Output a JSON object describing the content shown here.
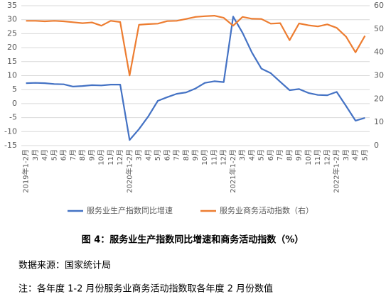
{
  "chart_data": {
    "type": "line",
    "title": "图 4：服务业生产指数同比增速和商务活动指数（%）",
    "source": "数据来源：国家统计局",
    "note": "注：各年度 1-2 月份服务业商务活动指数取各年度 2 月份数值",
    "categories": [
      "2019年1-2月",
      "3月",
      "4月",
      "5月",
      "6月",
      "7月",
      "8月",
      "9月",
      "10月",
      "11月",
      "12月",
      "2020年1-2月",
      "3月",
      "4月",
      "5月",
      "6月",
      "7月",
      "8月",
      "9月",
      "10月",
      "11月",
      "12月",
      "2021年1-2月",
      "3月",
      "4月",
      "5月",
      "6月",
      "7月",
      "8月",
      "9月",
      "10月",
      "11月",
      "12月",
      "2022年1-2月",
      "3月",
      "4月",
      "5月"
    ],
    "series": [
      {
        "name": "服务业生产指数同比增速",
        "color": "#4472c4",
        "values": [
          7.3,
          7.4,
          7.3,
          7.0,
          6.9,
          6.1,
          6.3,
          6.6,
          6.5,
          6.8,
          6.8,
          -13.0,
          -9.1,
          -4.5,
          1.0,
          2.3,
          3.5,
          4.0,
          5.4,
          7.4,
          8.0,
          7.7,
          31.1,
          25.3,
          18.2,
          12.5,
          10.9,
          7.8,
          4.8,
          5.2,
          3.8,
          3.1,
          3.0,
          4.2,
          -0.9,
          -6.1,
          -5.1
        ]
      },
      {
        "name": "服务业商务活动指数（右）",
        "color": "#ed7d31",
        "axis": "y2",
        "values": [
          53.5,
          53.5,
          53.3,
          53.5,
          53.3,
          52.9,
          52.5,
          52.8,
          51.4,
          53.5,
          53.0,
          30.1,
          51.8,
          52.1,
          52.3,
          53.4,
          53.5,
          54.3,
          55.2,
          55.5,
          55.7,
          54.8,
          51.4,
          55.2,
          54.4,
          54.3,
          52.3,
          52.5,
          45.2,
          52.4,
          51.6,
          51.1,
          52.0,
          50.5,
          46.7,
          40.0,
          47.1
        ]
      }
    ],
    "ylim": [
      -15,
      35
    ],
    "yticks": [
      -15,
      -10,
      -5,
      0,
      5,
      10,
      15,
      20,
      25,
      30,
      35
    ],
    "y2lim": [
      0,
      60
    ],
    "y2ticks": [
      0,
      10,
      20,
      30,
      40,
      50,
      60
    ],
    "grid": true
  }
}
